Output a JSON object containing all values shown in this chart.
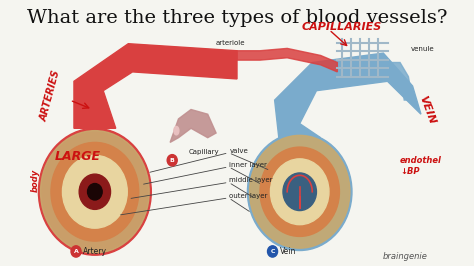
{
  "title": "What are the three types of blood vessels?",
  "title_fontsize": 14,
  "bg_color": "#f5f5f0",
  "red_annotations": [
    "ARTERIES",
    "LARGE",
    "CAPILLARIES",
    "VEIN"
  ],
  "labels": [
    "arteriole",
    "Capillary",
    "venule",
    "valve",
    "inner layer",
    "middle layer",
    "outer layer"
  ],
  "bottom_labels": [
    "A  Artery",
    "B  Capillary",
    "C  Vein"
  ],
  "handwritten_notes": [
    "ARTERIES",
    "LARGE",
    "CAPILLARIES",
    "VEIN",
    "endothel\n↓ BP"
  ],
  "footer": "braingenie",
  "artery_color": "#d94040",
  "vein_color": "#7aabcc",
  "cross_section_outer": "#c8a96e",
  "cross_section_mid": "#d4824a",
  "cross_section_inner": "#e8d5a0"
}
